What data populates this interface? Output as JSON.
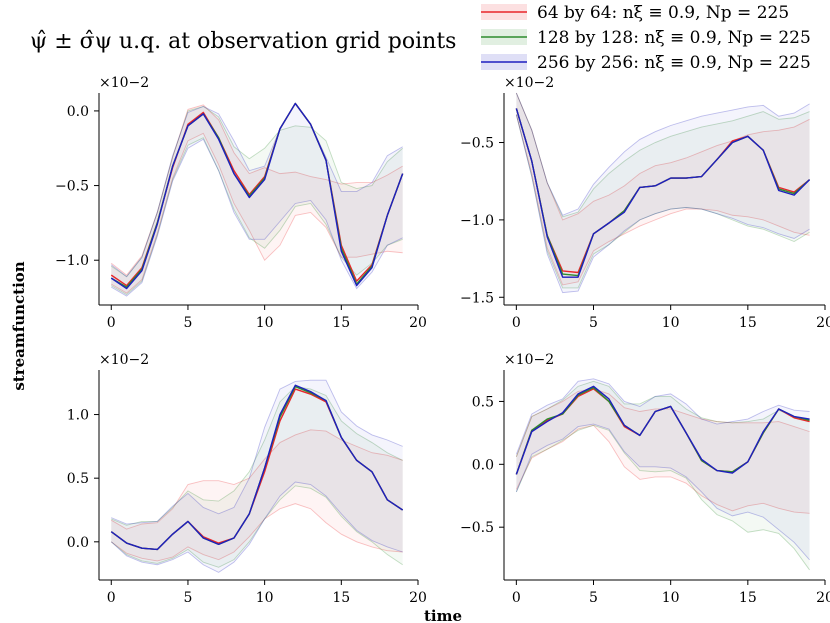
{
  "figure": {
    "title": "ψ̂ ± σ̂ψ u.q. at observation grid points",
    "ylabel": "streamfunction",
    "xlabel": "time",
    "legend": [
      {
        "label": "64 by 64: nξ ≡ 0.9, Np = 225",
        "color": "#e8262b"
      },
      {
        "label": "128 by 128: nξ ≡ 0.9, Np = 225",
        "color": "#2e8b2e"
      },
      {
        "label": "256 by 256: nξ ≡ 0.9, Np = 225",
        "color": "#1f1fbf"
      }
    ]
  },
  "chart_data": [
    {
      "type": "line",
      "subplot": "top-left",
      "x": [
        0,
        1,
        2,
        3,
        4,
        5,
        6,
        7,
        8,
        9,
        10,
        11,
        12,
        13,
        14,
        15,
        16,
        17,
        18,
        19
      ],
      "xticks": [
        0,
        5,
        10,
        15,
        20
      ],
      "xlim": [
        -0.8,
        20
      ],
      "yticks": [
        -1.0,
        -0.5,
        0.0
      ],
      "yticklabels": [
        "−1.0",
        "−0.5",
        "0.0"
      ],
      "ylim": [
        -1.3,
        0.12
      ],
      "multiplier": "×10−2",
      "series": [
        {
          "name": "64 by 64: nξ ≡ 0.9, Np = 225",
          "color": "#e8262b",
          "mean": [
            -1.1,
            -1.17,
            -1.05,
            -0.75,
            -0.38,
            -0.09,
            -0.01,
            -0.18,
            -0.4,
            -0.56,
            -0.44,
            -0.12,
            0.05,
            -0.09,
            -0.33,
            -0.9,
            -1.14,
            -1.03,
            -0.7,
            -0.42
          ],
          "lower": [
            -1.16,
            -1.22,
            -1.13,
            -0.82,
            -0.45,
            -0.2,
            -0.15,
            -0.36,
            -0.62,
            -0.8,
            -1.0,
            -0.9,
            -0.7,
            -0.68,
            -0.78,
            -0.98,
            -0.98,
            -0.96,
            -0.94,
            -0.95
          ],
          "upper": [
            -1.02,
            -1.1,
            -0.97,
            -0.68,
            -0.31,
            0.01,
            0.04,
            -0.06,
            -0.28,
            -0.42,
            -0.38,
            -0.42,
            -0.41,
            -0.44,
            -0.46,
            -0.49,
            -0.48,
            -0.48,
            -0.43,
            -0.37
          ]
        },
        {
          "name": "128 by 128: nξ ≡ 0.9, Np = 225",
          "color": "#2e8b2e",
          "mean": [
            -1.12,
            -1.18,
            -1.06,
            -0.75,
            -0.37,
            -0.1,
            -0.02,
            -0.18,
            -0.42,
            -0.57,
            -0.45,
            -0.12,
            0.05,
            -0.09,
            -0.33,
            -0.92,
            -1.16,
            -1.04,
            -0.7,
            -0.42
          ],
          "lower": [
            -1.17,
            -1.23,
            -1.14,
            -0.83,
            -0.46,
            -0.23,
            -0.18,
            -0.4,
            -0.66,
            -0.85,
            -0.92,
            -0.8,
            -0.64,
            -0.62,
            -0.76,
            -0.98,
            -1.1,
            -1.02,
            -0.9,
            -0.86
          ],
          "upper": [
            -1.04,
            -1.11,
            -0.98,
            -0.68,
            -0.31,
            0.0,
            0.03,
            -0.04,
            -0.24,
            -0.32,
            -0.25,
            -0.13,
            -0.1,
            -0.11,
            -0.2,
            -0.48,
            -0.52,
            -0.5,
            -0.34,
            -0.25
          ]
        },
        {
          "name": "256 by 256: nξ ≡ 0.9, Np = 225",
          "color": "#1f1fbf",
          "mean": [
            -1.12,
            -1.19,
            -1.07,
            -0.76,
            -0.37,
            -0.1,
            -0.02,
            -0.19,
            -0.42,
            -0.58,
            -0.46,
            -0.12,
            0.05,
            -0.09,
            -0.33,
            -0.94,
            -1.17,
            -1.05,
            -0.7,
            -0.42
          ],
          "lower": [
            -1.18,
            -1.24,
            -1.15,
            -0.84,
            -0.47,
            -0.25,
            -0.19,
            -0.4,
            -0.68,
            -0.86,
            -0.86,
            -0.74,
            -0.62,
            -0.6,
            -0.73,
            -1.0,
            -1.19,
            -1.08,
            -0.9,
            -0.85
          ],
          "upper": [
            -1.03,
            -1.11,
            -0.98,
            -0.68,
            -0.3,
            -0.01,
            0.03,
            -0.02,
            -0.2,
            -0.4,
            -0.37,
            -0.12,
            0.05,
            -0.09,
            -0.31,
            -0.54,
            -0.54,
            -0.48,
            -0.3,
            -0.24
          ]
        }
      ]
    },
    {
      "type": "line",
      "subplot": "top-right",
      "x": [
        0,
        1,
        2,
        3,
        4,
        5,
        6,
        7,
        8,
        9,
        10,
        11,
        12,
        13,
        14,
        15,
        16,
        17,
        18,
        19
      ],
      "xticks": [
        0,
        5,
        10,
        15,
        20
      ],
      "xlim": [
        -0.8,
        20
      ],
      "yticks": [
        -1.5,
        -1.0,
        -0.5
      ],
      "yticklabels": [
        "−1.5",
        "−1.0",
        "−0.5"
      ],
      "ylim": [
        -1.55,
        -0.18
      ],
      "multiplier": "×10−2",
      "series": [
        {
          "name": "64 by 64: nξ ≡ 0.9, Np = 225",
          "color": "#e8262b",
          "mean": [
            -0.28,
            -0.62,
            -1.1,
            -1.33,
            -1.34,
            -1.09,
            -1.02,
            -0.94,
            -0.79,
            -0.78,
            -0.73,
            -0.73,
            -0.72,
            -0.61,
            -0.49,
            -0.46,
            -0.55,
            -0.79,
            -0.82,
            -0.74
          ],
          "lower": [
            -0.32,
            -0.7,
            -1.18,
            -1.42,
            -1.4,
            -1.2,
            -1.14,
            -1.09,
            -1.04,
            -1.0,
            -0.96,
            -0.93,
            -0.93,
            -0.94,
            -0.97,
            -0.98,
            -1.0,
            -1.04,
            -1.08,
            -1.1
          ],
          "upper": [
            -0.18,
            -0.42,
            -0.76,
            -1.0,
            -0.96,
            -0.88,
            -0.84,
            -0.78,
            -0.7,
            -0.65,
            -0.63,
            -0.6,
            -0.56,
            -0.52,
            -0.49,
            -0.45,
            -0.43,
            -0.42,
            -0.4,
            -0.35
          ]
        },
        {
          "name": "128 by 128: nξ ≡ 0.9, Np = 225",
          "color": "#2e8b2e",
          "mean": [
            -0.28,
            -0.62,
            -1.1,
            -1.35,
            -1.36,
            -1.09,
            -1.02,
            -0.94,
            -0.79,
            -0.78,
            -0.73,
            -0.73,
            -0.72,
            -0.61,
            -0.5,
            -0.46,
            -0.55,
            -0.8,
            -0.83,
            -0.74
          ],
          "lower": [
            -0.32,
            -0.72,
            -1.2,
            -1.44,
            -1.44,
            -1.22,
            -1.16,
            -1.08,
            -1.0,
            -0.96,
            -0.93,
            -0.92,
            -0.93,
            -0.96,
            -1.0,
            -1.04,
            -1.06,
            -1.1,
            -1.14,
            -1.08
          ],
          "upper": [
            -0.18,
            -0.42,
            -0.76,
            -0.98,
            -0.95,
            -0.8,
            -0.7,
            -0.62,
            -0.55,
            -0.5,
            -0.46,
            -0.43,
            -0.4,
            -0.38,
            -0.36,
            -0.33,
            -0.3,
            -0.35,
            -0.34,
            -0.3
          ]
        },
        {
          "name": "256 by 256: nξ ≡ 0.9, Np = 225",
          "color": "#1f1fbf",
          "mean": [
            -0.28,
            -0.62,
            -1.11,
            -1.37,
            -1.37,
            -1.09,
            -1.02,
            -0.95,
            -0.79,
            -0.78,
            -0.73,
            -0.73,
            -0.72,
            -0.61,
            -0.5,
            -0.46,
            -0.55,
            -0.81,
            -0.84,
            -0.74
          ],
          "lower": [
            -0.32,
            -0.72,
            -1.22,
            -1.47,
            -1.46,
            -1.24,
            -1.16,
            -1.07,
            -1.0,
            -0.96,
            -0.93,
            -0.92,
            -0.93,
            -0.96,
            -0.99,
            -1.03,
            -1.05,
            -1.09,
            -1.12,
            -1.06
          ],
          "upper": [
            -0.18,
            -0.42,
            -0.76,
            -0.97,
            -0.93,
            -0.77,
            -0.66,
            -0.56,
            -0.48,
            -0.43,
            -0.39,
            -0.36,
            -0.33,
            -0.31,
            -0.29,
            -0.27,
            -0.26,
            -0.33,
            -0.31,
            -0.25
          ]
        }
      ]
    },
    {
      "type": "line",
      "subplot": "bottom-left",
      "x": [
        0,
        1,
        2,
        3,
        4,
        5,
        6,
        7,
        8,
        9,
        10,
        11,
        12,
        13,
        14,
        15,
        16,
        17,
        18,
        19
      ],
      "xticks": [
        0,
        5,
        10,
        15,
        20
      ],
      "xlim": [
        -0.8,
        20
      ],
      "yticks": [
        0.0,
        0.5,
        1.0
      ],
      "yticklabels": [
        "0.0",
        "0.5",
        "1.0"
      ],
      "ylim": [
        -0.3,
        1.35
      ],
      "multiplier": "×10−2",
      "series": [
        {
          "name": "64 by 64: nξ ≡ 0.9, Np = 225",
          "color": "#e8262b",
          "mean": [
            0.08,
            -0.01,
            -0.05,
            -0.06,
            0.06,
            0.16,
            0.04,
            -0.01,
            0.03,
            0.22,
            0.55,
            0.95,
            1.2,
            1.16,
            1.1,
            0.82,
            0.64,
            0.55,
            0.33,
            0.25
          ],
          "lower": [
            0.0,
            -0.09,
            -0.13,
            -0.15,
            -0.12,
            -0.04,
            -0.1,
            -0.14,
            -0.08,
            0.04,
            0.18,
            0.26,
            0.3,
            0.26,
            0.15,
            0.06,
            0.0,
            -0.04,
            -0.07,
            -0.08
          ],
          "upper": [
            0.17,
            0.1,
            0.14,
            0.15,
            0.26,
            0.45,
            0.48,
            0.48,
            0.45,
            0.5,
            0.65,
            0.78,
            0.84,
            0.88,
            0.87,
            0.8,
            0.75,
            0.7,
            0.68,
            0.64
          ]
        },
        {
          "name": "128 by 128: nξ ≡ 0.9, Np = 225",
          "color": "#2e8b2e",
          "mean": [
            0.08,
            -0.01,
            -0.05,
            -0.06,
            0.06,
            0.16,
            0.03,
            -0.02,
            0.03,
            0.22,
            0.58,
            0.98,
            1.22,
            1.17,
            1.11,
            0.82,
            0.64,
            0.55,
            0.33,
            0.25
          ],
          "lower": [
            0.0,
            -0.1,
            -0.15,
            -0.17,
            -0.13,
            -0.06,
            -0.16,
            -0.2,
            -0.14,
            0.0,
            0.18,
            0.33,
            0.44,
            0.42,
            0.35,
            0.2,
            0.08,
            0.0,
            -0.1,
            -0.18
          ],
          "upper": [
            0.18,
            0.13,
            0.16,
            0.16,
            0.27,
            0.4,
            0.33,
            0.32,
            0.4,
            0.55,
            0.8,
            1.1,
            1.22,
            1.2,
            1.15,
            0.95,
            0.85,
            0.78,
            0.7,
            0.64
          ]
        },
        {
          "name": "256 by 256: nξ ≡ 0.9, Np = 225",
          "color": "#1f1fbf",
          "mean": [
            0.08,
            -0.01,
            -0.05,
            -0.06,
            0.06,
            0.16,
            0.03,
            -0.02,
            0.03,
            0.22,
            0.58,
            1.0,
            1.23,
            1.18,
            1.11,
            0.82,
            0.64,
            0.55,
            0.33,
            0.25
          ],
          "lower": [
            0.0,
            -0.11,
            -0.16,
            -0.18,
            -0.14,
            -0.08,
            -0.18,
            -0.24,
            -0.16,
            -0.02,
            0.18,
            0.36,
            0.47,
            0.45,
            0.36,
            0.22,
            0.09,
            0.01,
            -0.04,
            -0.08
          ],
          "upper": [
            0.19,
            0.14,
            0.15,
            0.16,
            0.28,
            0.38,
            0.27,
            0.22,
            0.27,
            0.5,
            0.9,
            1.2,
            1.26,
            1.27,
            1.27,
            1.02,
            0.91,
            0.84,
            0.8,
            0.75
          ]
        }
      ]
    },
    {
      "type": "line",
      "subplot": "bottom-right",
      "x": [
        0,
        1,
        2,
        3,
        4,
        5,
        6,
        7,
        8,
        9,
        10,
        11,
        12,
        13,
        14,
        15,
        16,
        17,
        18,
        19
      ],
      "xticks": [
        0,
        5,
        10,
        15,
        20
      ],
      "xlim": [
        -0.8,
        20
      ],
      "yticks": [
        -0.5,
        0.0,
        0.5
      ],
      "yticklabels": [
        "−0.5",
        "0.0",
        "0.5"
      ],
      "ylim": [
        -0.92,
        0.75
      ],
      "multiplier": "×10−2",
      "series": [
        {
          "name": "64 by 64: nξ ≡ 0.9, Np = 225",
          "color": "#e8262b",
          "mean": [
            -0.08,
            0.27,
            0.35,
            0.4,
            0.54,
            0.6,
            0.5,
            0.3,
            0.23,
            0.42,
            0.46,
            0.25,
            0.03,
            -0.05,
            -0.06,
            0.02,
            0.25,
            0.44,
            0.37,
            0.34
          ],
          "lower": [
            -0.2,
            0.05,
            0.12,
            0.18,
            0.28,
            0.31,
            0.18,
            -0.02,
            -0.12,
            -0.1,
            -0.1,
            -0.15,
            -0.25,
            -0.32,
            -0.37,
            -0.33,
            -0.31,
            -0.35,
            -0.38,
            -0.39
          ],
          "upper": [
            0.06,
            0.38,
            0.44,
            0.5,
            0.58,
            0.6,
            0.56,
            0.45,
            0.42,
            0.44,
            0.44,
            0.4,
            0.36,
            0.34,
            0.33,
            0.33,
            0.33,
            0.34,
            0.3,
            0.26
          ]
        },
        {
          "name": "128 by 128: nξ ≡ 0.9, Np = 225",
          "color": "#2e8b2e",
          "mean": [
            -0.08,
            0.27,
            0.36,
            0.4,
            0.55,
            0.61,
            0.5,
            0.31,
            0.23,
            0.42,
            0.46,
            0.25,
            0.03,
            -0.05,
            -0.06,
            0.02,
            0.25,
            0.44,
            0.38,
            0.35
          ],
          "lower": [
            -0.22,
            0.06,
            0.12,
            0.19,
            0.27,
            0.31,
            0.27,
            0.09,
            -0.05,
            -0.06,
            -0.05,
            -0.11,
            -0.28,
            -0.4,
            -0.45,
            -0.54,
            -0.52,
            -0.55,
            -0.67,
            -0.84
          ],
          "upper": [
            0.06,
            0.38,
            0.44,
            0.51,
            0.62,
            0.66,
            0.62,
            0.48,
            0.48,
            0.54,
            0.54,
            0.44,
            0.37,
            0.34,
            0.33,
            0.34,
            0.36,
            0.43,
            0.38,
            0.35
          ]
        },
        {
          "name": "256 by 256: nξ ≡ 0.9, Np = 225",
          "color": "#1f1fbf",
          "mean": [
            -0.08,
            0.26,
            0.34,
            0.41,
            0.56,
            0.62,
            0.52,
            0.31,
            0.23,
            0.42,
            0.46,
            0.25,
            0.04,
            -0.05,
            -0.07,
            0.02,
            0.26,
            0.44,
            0.38,
            0.36
          ],
          "lower": [
            -0.22,
            0.08,
            0.15,
            0.2,
            0.3,
            0.32,
            0.28,
            0.1,
            -0.02,
            -0.02,
            -0.03,
            -0.1,
            -0.22,
            -0.35,
            -0.41,
            -0.38,
            -0.42,
            -0.52,
            -0.62,
            -0.76
          ],
          "upper": [
            0.08,
            0.4,
            0.47,
            0.52,
            0.66,
            0.68,
            0.64,
            0.5,
            0.46,
            0.54,
            0.56,
            0.48,
            0.36,
            0.32,
            0.34,
            0.36,
            0.42,
            0.47,
            0.43,
            0.42
          ]
        }
      ]
    }
  ]
}
